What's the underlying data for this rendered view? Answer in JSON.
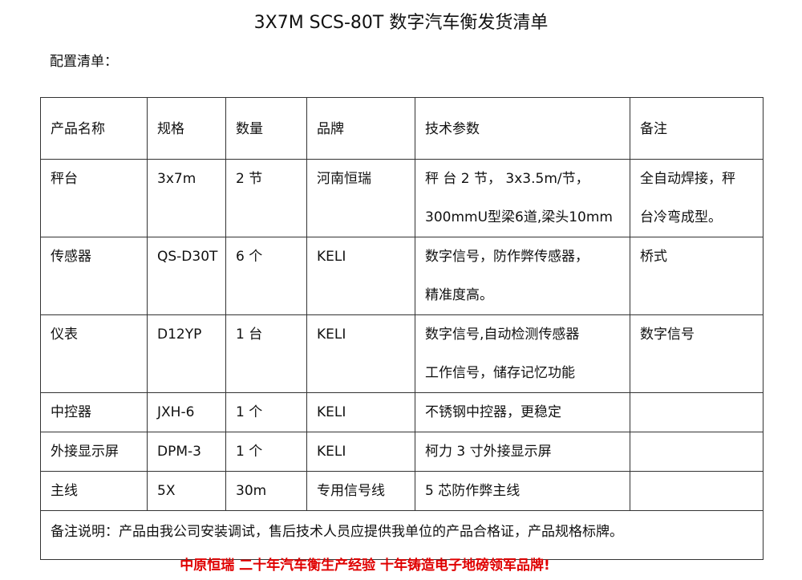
{
  "header": {
    "title": "3X7M SCS-80T 数字汽车衡发货清单",
    "subtitle": "配置清单："
  },
  "table": {
    "columns": [
      "产品名称",
      "规格",
      "数量",
      "品牌",
      "技术参数",
      "备注"
    ],
    "rows": [
      [
        [
          "秤台"
        ],
        [
          "3x7m"
        ],
        [
          "2 节"
        ],
        [
          "河南恒瑞"
        ],
        [
          "秤 台 2 节， 3x3.5m/节，",
          "300mmU型梁6道,梁头10mm"
        ],
        [
          "全自动焊接，秤",
          "台冷弯成型。"
        ]
      ],
      [
        [
          "传感器"
        ],
        [
          "QS-D30T"
        ],
        [
          "6 个"
        ],
        [
          "KELI"
        ],
        [
          "数字信号，防作弊传感器，",
          "精准度高。"
        ],
        [
          "桥式"
        ]
      ],
      [
        [
          "仪表"
        ],
        [
          "D12YP"
        ],
        [
          "1 台"
        ],
        [
          "KELI"
        ],
        [
          "数字信号,自动检测传感器",
          "工作信号，储存记忆功能"
        ],
        [
          "数字信号"
        ]
      ],
      [
        [
          "中控器"
        ],
        [
          "JXH-6"
        ],
        [
          "1 个"
        ],
        [
          "KELI"
        ],
        [
          "不锈钢中控器，更稳定"
        ],
        []
      ],
      [
        [
          "外接显示屏"
        ],
        [
          "DPM-3"
        ],
        [
          "1 个"
        ],
        [
          "KELI"
        ],
        [
          "柯力 3 寸外接显示屏"
        ],
        []
      ],
      [
        [
          "主线"
        ],
        [
          "5X"
        ],
        [
          "30m"
        ],
        [
          "专用信号线"
        ],
        [
          "5 芯防作弊主线"
        ],
        []
      ]
    ],
    "note": "备注说明：产品由我公司安装调试，售后技术人员应提供我单位的产品合格证，产品规格标牌。"
  },
  "footer": {
    "slogan": "中原恒瑞  二十年汽车衡生产经验  十年铸造电子地磅领军品牌!"
  }
}
